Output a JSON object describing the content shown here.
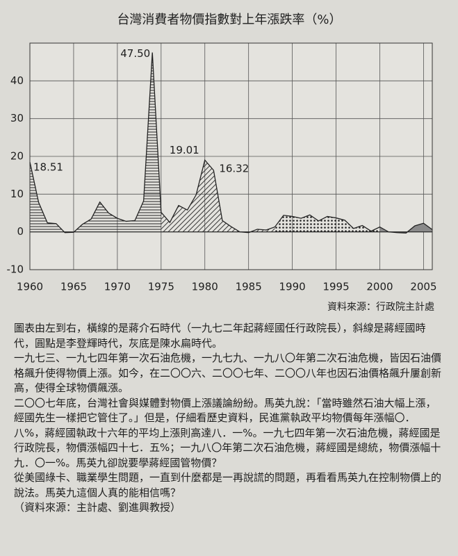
{
  "chart_data": {
    "type": "area",
    "title": "台灣消費者物價指數對上年漲跌率（%）",
    "x": [
      1960,
      1961,
      1962,
      1963,
      1964,
      1965,
      1966,
      1967,
      1968,
      1969,
      1970,
      1971,
      1972,
      1973,
      1974,
      1975,
      1976,
      1977,
      1978,
      1979,
      1980,
      1981,
      1982,
      1983,
      1984,
      1985,
      1986,
      1987,
      1988,
      1989,
      1990,
      1991,
      1992,
      1993,
      1994,
      1995,
      1996,
      1997,
      1998,
      1999,
      2000,
      2001,
      2002,
      2003,
      2004,
      2005,
      2006
    ],
    "values": [
      18.51,
      7.8,
      2.4,
      2.2,
      -0.2,
      -0.1,
      2.0,
      3.4,
      7.9,
      5.0,
      3.6,
      2.8,
      3.0,
      8.2,
      47.5,
      5.2,
      2.5,
      7.0,
      5.8,
      9.8,
      19.01,
      16.32,
      3.0,
      1.4,
      0.0,
      -0.2,
      0.7,
      0.5,
      1.3,
      4.4,
      4.1,
      3.6,
      4.5,
      2.9,
      4.1,
      3.7,
      3.1,
      0.9,
      1.7,
      0.2,
      1.3,
      0.0,
      -0.2,
      -0.3,
      1.6,
      2.3,
      0.6
    ],
    "value_labels": [
      "18.51",
      null,
      null,
      null,
      null,
      null,
      null,
      null,
      null,
      null,
      null,
      null,
      null,
      null,
      "47.50",
      null,
      null,
      null,
      null,
      null,
      "19.01",
      "16.32",
      null,
      null,
      null,
      null,
      null,
      null,
      null,
      null,
      null,
      null,
      null,
      null,
      null,
      null,
      null,
      null,
      null,
      null,
      null,
      null,
      null,
      null,
      null,
      null,
      null
    ],
    "fill_segments": [
      {
        "from": 1960,
        "to": 1975,
        "pattern": "hlines"
      },
      {
        "from": 1975,
        "to": 1988,
        "pattern": "diagonal"
      },
      {
        "from": 1988,
        "to": 2000,
        "pattern": "dots"
      },
      {
        "from": 2000,
        "to": 2006,
        "pattern": "gray"
      }
    ],
    "xlim": [
      1960,
      2006
    ],
    "xticks": [
      1960,
      1965,
      1970,
      1975,
      1980,
      1985,
      1990,
      1995,
      2000,
      2005
    ],
    "ylim": [
      -10,
      50
    ],
    "yticks": [
      -10,
      0,
      10,
      20,
      30,
      40
    ],
    "grid": true,
    "color": "#222222"
  },
  "source": "資料來源：行政院主計處",
  "paragraphs": [
    "圖表由左到右，橫線的是蔣介石時代（一九七二年起蔣經國任行政院長），斜線是蔣經國時代，圓點是李登輝時代，灰底是陳水扁時代。",
    "一九七三、一九七四年第一次石油危機，一九七九、一九八〇年第二次石油危機，皆因石油價格飆升使得物價上漲。如今，在二〇〇六、二〇〇七年、二〇〇八年也因石油價格飆升屢創新高，使得全球物價飆漲。",
    "二〇〇七年底，台灣社會與媒體對物價上漲議論紛紛。馬英九說：「當時雖然石油大幅上漲，經國先生一樣把它管住了。」但是，仔細看歷史資料，民進黨執政平均物價每年漲幅〇．八%，蔣經國執政十六年的平均上漲則高達八．一%。一九七四年第一次石油危機，蔣經國是行政院長，物價漲幅四十七．五%；一九八〇年第二次石油危機，蔣經國是總統，物價漲幅十九．〇一%。馬英九卻說要學蔣經國管物價？",
    "從美國綠卡、職業學生問題，一直到什麼都是一再說謊的問題，再看看馬英九在控制物價上的說法。馬英九這個人真的能相信嗎？",
    "（資料來源：主計處、劉進興教授）"
  ]
}
